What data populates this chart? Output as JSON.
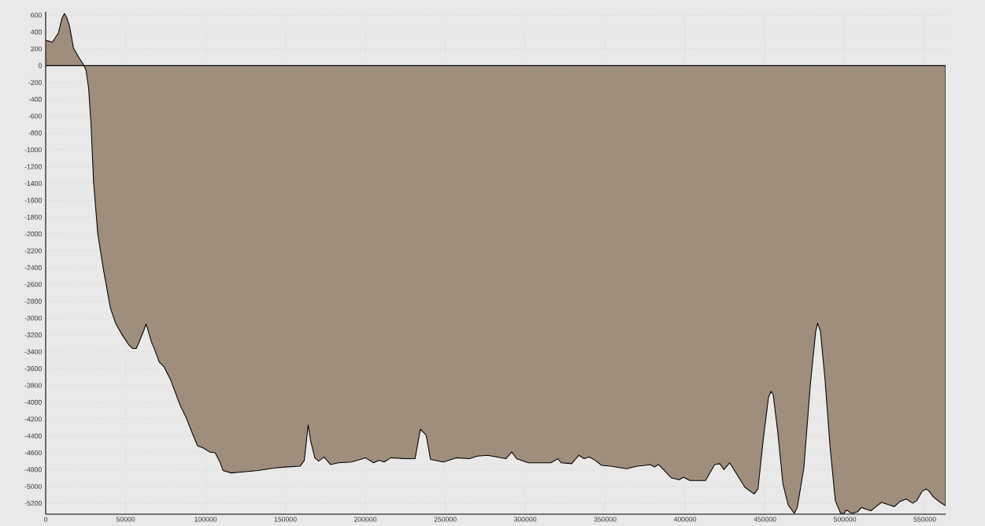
{
  "chart_data": {
    "type": "area",
    "x": [
      0,
      2300,
      4200,
      8000,
      10100,
      11800,
      13200,
      14900,
      17400,
      21000,
      23100,
      25200,
      26900,
      28400,
      30000,
      32600,
      36300,
      40500,
      43700,
      47900,
      52100,
      54200,
      56700,
      59000,
      61500,
      62800,
      64300,
      66100,
      68300,
      71000,
      74100,
      78300,
      84200,
      87800,
      92000,
      95100,
      98300,
      102500,
      106000,
      108800,
      110900,
      116100,
      122400,
      132900,
      143400,
      149700,
      159200,
      161800,
      164200,
      165900,
      168400,
      170800,
      174100,
      178200,
      183100,
      191300,
      200000,
      205200,
      208500,
      211800,
      215900,
      224100,
      231100,
      234400,
      238000,
      240800,
      248700,
      256900,
      265100,
      270000,
      276500,
      288000,
      291600,
      294600,
      302000,
      315900,
      320500,
      322400,
      329000,
      333600,
      336900,
      340000,
      343700,
      347800,
      353600,
      363400,
      370000,
      374900,
      378300,
      380800,
      383300,
      386500,
      391500,
      396400,
      398900,
      403000,
      412800,
      418500,
      421800,
      424300,
      427900,
      432500,
      437400,
      443200,
      445600,
      448900,
      452200,
      453800,
      455100,
      457900,
      461200,
      464500,
      468300,
      470200,
      474300,
      478400,
      481700,
      482900,
      484700,
      487500,
      490700,
      494000,
      497300,
      499400,
      501100,
      503100,
      504700,
      508000,
      510400,
      512900,
      516200,
      519500,
      522800,
      527700,
      531000,
      534300,
      538400,
      542400,
      544900,
      548200,
      550700,
      552300,
      555600,
      559700,
      563000
    ],
    "series": [
      {
        "color": "#a08e7c",
        "values": [
          300,
          290,
          280,
          390,
          560,
          620,
          570,
          470,
          210,
          90,
          30,
          -50,
          -270,
          -710,
          -1390,
          -2000,
          -2440,
          -2880,
          -3060,
          -3200,
          -3320,
          -3360,
          -3360,
          -3260,
          -3140,
          -3070,
          -3160,
          -3280,
          -3380,
          -3520,
          -3580,
          -3740,
          -4040,
          -4180,
          -4380,
          -4520,
          -4540,
          -4590,
          -4600,
          -4700,
          -4810,
          -4840,
          -4830,
          -4810,
          -4780,
          -4770,
          -4760,
          -4690,
          -4270,
          -4470,
          -4660,
          -4700,
          -4650,
          -4740,
          -4720,
          -4710,
          -4660,
          -4720,
          -4690,
          -4710,
          -4660,
          -4670,
          -4670,
          -4320,
          -4390,
          -4680,
          -4710,
          -4660,
          -4670,
          -4640,
          -4630,
          -4670,
          -4590,
          -4670,
          -4720,
          -4720,
          -4670,
          -4720,
          -4730,
          -4630,
          -4670,
          -4650,
          -4690,
          -4750,
          -4760,
          -4790,
          -4760,
          -4750,
          -4740,
          -4770,
          -4740,
          -4800,
          -4900,
          -4920,
          -4890,
          -4930,
          -4930,
          -4740,
          -4730,
          -4800,
          -4720,
          -4860,
          -5010,
          -5090,
          -5030,
          -4440,
          -3940,
          -3870,
          -3910,
          -4340,
          -4970,
          -5220,
          -5320,
          -5250,
          -4780,
          -3780,
          -3160,
          -3060,
          -3160,
          -3720,
          -4530,
          -5170,
          -5320,
          -5320,
          -5280,
          -5310,
          -5320,
          -5300,
          -5250,
          -5270,
          -5290,
          -5240,
          -5190,
          -5220,
          -5240,
          -5180,
          -5150,
          -5200,
          -5170,
          -5060,
          -5030,
          -5050,
          -5130,
          -5190,
          -5230
        ]
      }
    ],
    "xlim": [
      0,
      563000
    ],
    "ylim": [
      -5330,
      640
    ],
    "xticks": [
      0,
      50000,
      100000,
      150000,
      200000,
      250000,
      300000,
      350000,
      400000,
      450000,
      500000,
      550000
    ],
    "yticks": [
      -5200,
      -5000,
      -4800,
      -4600,
      -4400,
      -4200,
      -4000,
      -3800,
      -3600,
      -3400,
      -3200,
      -3000,
      -2800,
      -2600,
      -2400,
      -2200,
      -2000,
      -1800,
      -1600,
      -1400,
      -1200,
      -1000,
      -800,
      -600,
      -400,
      -200,
      0,
      200,
      400,
      600
    ],
    "grid": true,
    "marker": "none",
    "line_style": "solid"
  }
}
